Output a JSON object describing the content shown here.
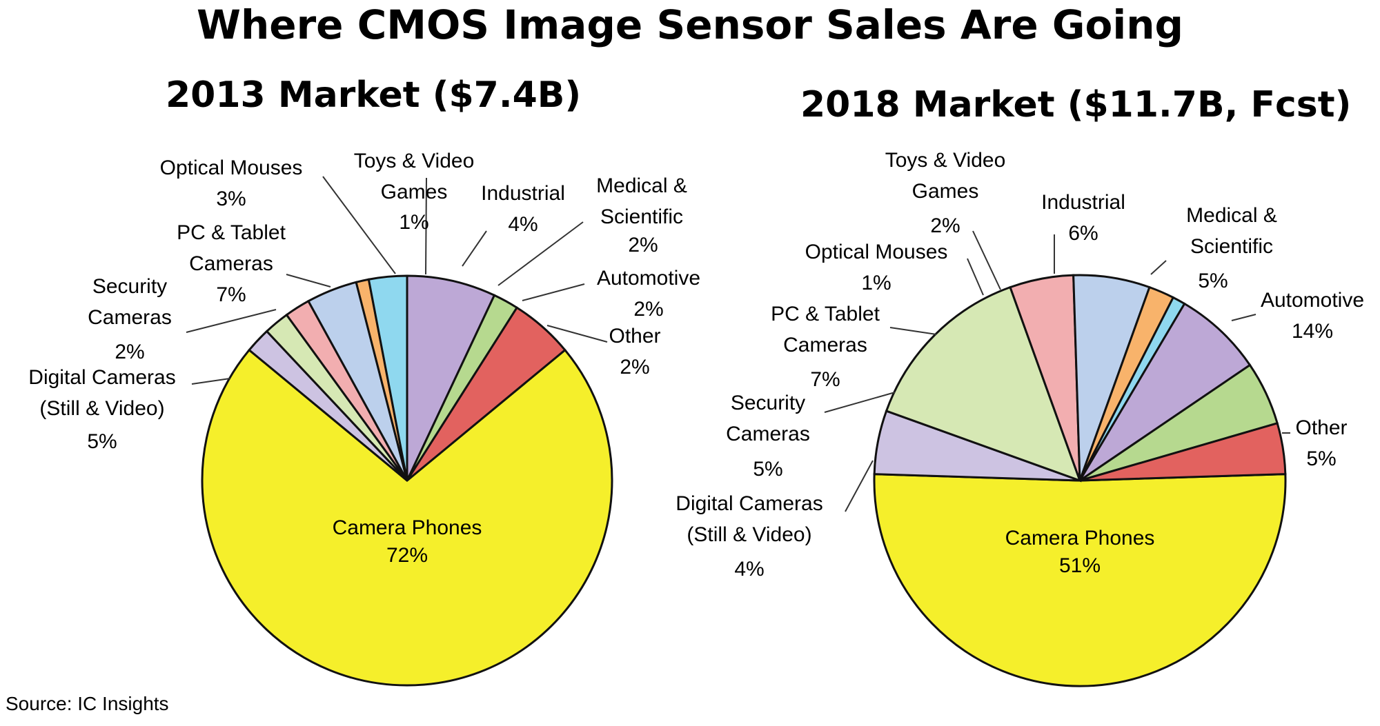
{
  "title": "Where CMOS Image Sensor Sales Are Going",
  "source": "Source: IC Insights",
  "chart_data": [
    {
      "type": "pie",
      "title": "2013 Market ($7.4B)",
      "slices": [
        {
          "label": "Camera Phones",
          "value": 72,
          "value_label": "72%",
          "color": "#f5ef2b"
        },
        {
          "label": "Other",
          "value": 2,
          "value_label": "2%",
          "color": "#cdc3e2"
        },
        {
          "label": "Automotive",
          "value": 2,
          "value_label": "2%",
          "color": "#d6e8b4"
        },
        {
          "label": "Medical & Scientific",
          "value": 2,
          "value_label": "2%",
          "color": "#f2aeb0"
        },
        {
          "label": "Industrial",
          "value": 4,
          "value_label": "4%",
          "color": "#bcd0ec"
        },
        {
          "label": "Toys & Video Games",
          "value": 1,
          "value_label": "1%",
          "color": "#f8b36b"
        },
        {
          "label": "Optical Mouses",
          "value": 3,
          "value_label": "3%",
          "color": "#8fd8ef"
        },
        {
          "label": "PC & Tablet Cameras",
          "value": 7,
          "value_label": "7%",
          "color": "#bda8d6"
        },
        {
          "label": "Security Cameras",
          "value": 2,
          "value_label": "2%",
          "color": "#b6d98f"
        },
        {
          "label": "Digital Cameras (Still & Video)",
          "value": 5,
          "value_label": "5%",
          "color": "#e2625f"
        }
      ]
    },
    {
      "type": "pie",
      "title": "2018 Market ($11.7B, Fcst)",
      "slices": [
        {
          "label": "Camera Phones",
          "value": 51,
          "value_label": "51%",
          "color": "#f5ef2b"
        },
        {
          "label": "Other",
          "value": 5,
          "value_label": "5%",
          "color": "#cdc3e2"
        },
        {
          "label": "Automotive",
          "value": 14,
          "value_label": "14%",
          "color": "#d6e8b4"
        },
        {
          "label": "Medical & Scientific",
          "value": 5,
          "value_label": "5%",
          "color": "#f2aeb0"
        },
        {
          "label": "Industrial",
          "value": 6,
          "value_label": "6%",
          "color": "#bcd0ec"
        },
        {
          "label": "Toys & Video Games",
          "value": 2,
          "value_label": "2%",
          "color": "#f8b36b"
        },
        {
          "label": "Optical Mouses",
          "value": 1,
          "value_label": "1%",
          "color": "#8fd8ef"
        },
        {
          "label": "PC & Tablet Cameras",
          "value": 7,
          "value_label": "7%",
          "color": "#bda8d6"
        },
        {
          "label": "Security Cameras",
          "value": 5,
          "value_label": "5%",
          "color": "#b6d98f"
        },
        {
          "label": "Digital Cameras (Still & Video)",
          "value": 4,
          "value_label": "4%",
          "color": "#e2625f"
        }
      ]
    }
  ]
}
